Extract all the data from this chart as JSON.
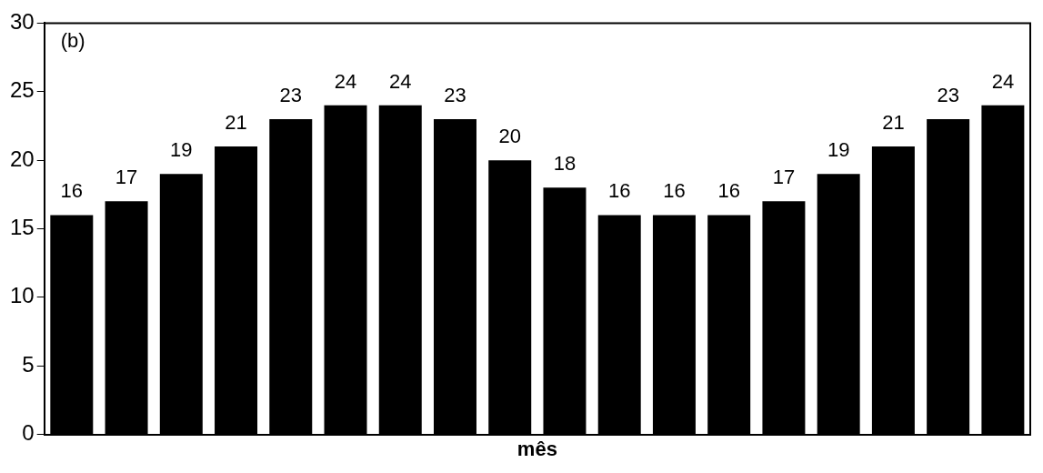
{
  "chart_data": {
    "type": "bar",
    "xlabel": "mês",
    "annotations": [
      "(b)"
    ],
    "categories": [
      null,
      null,
      null,
      null,
      null,
      null,
      null,
      null,
      null,
      null,
      null,
      null,
      null,
      null,
      null,
      null,
      null,
      null
    ],
    "values": [
      16,
      17,
      19,
      21,
      23,
      24,
      24,
      23,
      20,
      18,
      16,
      16,
      16,
      17,
      19,
      21,
      23,
      24
    ],
    "color": "#000000",
    "ylim": [
      0,
      30
    ],
    "yticks": [
      0,
      5,
      10,
      15,
      20,
      25,
      30
    ],
    "grid": false,
    "data_labels": true,
    "tick_labels": "y"
  }
}
